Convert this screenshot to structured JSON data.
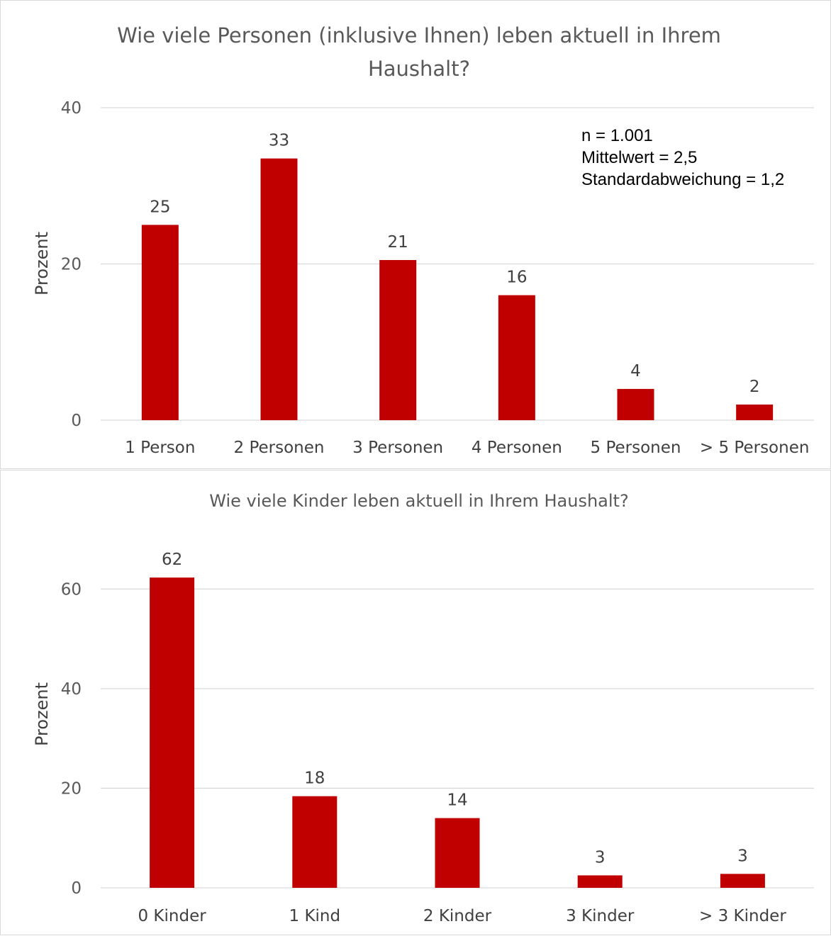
{
  "colors": {
    "bar": "#c00000",
    "grid": "#d9d9d9",
    "text": "#404040"
  },
  "chart_data": [
    {
      "type": "bar",
      "title_line1": "Wie viele Personen (inklusive Ihnen) leben aktuell in Ihrem",
      "title_line2": "Haushalt?",
      "ylabel": "Prozent",
      "xlabel": "",
      "ylim": [
        0,
        40
      ],
      "yticks": [
        0,
        20,
        40
      ],
      "categories": [
        "1 Person",
        "2 Personen",
        "3 Personen",
        "4 Personen",
        "5 Personen",
        "> 5 Personen"
      ],
      "values": [
        25,
        33.5,
        20.5,
        16,
        4,
        2
      ],
      "data_labels": [
        "25",
        "33",
        "21",
        "16",
        "4",
        "2"
      ],
      "annotation": [
        "n = 1.001",
        "Mittelwert = 2,5",
        "Standardabweichung = 1,2"
      ],
      "grid": true,
      "legend": "none"
    },
    {
      "type": "bar",
      "title": "Wie viele Kinder leben aktuell in Ihrem Haushalt?",
      "ylabel": "Prozent",
      "xlabel": "",
      "ylim": [
        0,
        70
      ],
      "yticks": [
        0,
        20,
        40,
        60
      ],
      "categories": [
        "0  Kinder",
        "1 Kind",
        "2 Kinder",
        "3 Kinder",
        "> 3 Kinder"
      ],
      "values": [
        62.3,
        18.4,
        14,
        2.5,
        2.8
      ],
      "data_labels": [
        "62",
        "18",
        "14",
        "3",
        "3"
      ],
      "grid": true,
      "legend": "none"
    }
  ]
}
